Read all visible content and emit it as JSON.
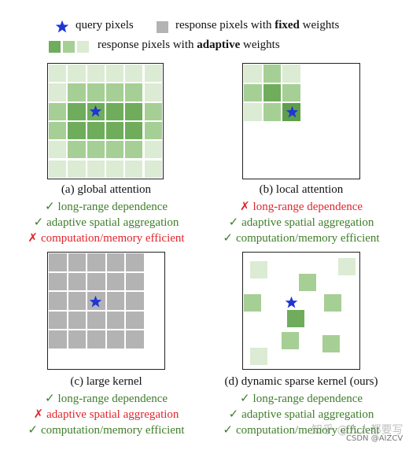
{
  "legend": {
    "query_label": "query pixels",
    "fixed_prefix": "response pixels with",
    "fixed_bold": "fixed",
    "fixed_suffix": "weights",
    "adaptive_prefix": "response pixels with",
    "adaptive_bold": "adaptive",
    "adaptive_suffix": "weights"
  },
  "colors": {
    "query_star": "#1f35d6",
    "fixed_gray": "#b3b3b3",
    "green_dark": "#6fad5c",
    "green_mid": "#a6cf95",
    "green_light": "#dcebd3",
    "good_text": "#3f7d2a",
    "bad_text": "#e0252b"
  },
  "marks": {
    "check": "✓",
    "cross": "✗"
  },
  "panels": [
    {
      "caption": "(a) global attention",
      "points": [
        {
          "ok": true,
          "text": "long-range dependence"
        },
        {
          "ok": true,
          "text": "adaptive spatial aggregation"
        },
        {
          "ok": false,
          "text": "computation/memory efficient"
        }
      ]
    },
    {
      "caption": "(b) local attention",
      "points": [
        {
          "ok": false,
          "text": "long-range dependence"
        },
        {
          "ok": true,
          "text": "adaptive spatial aggregation"
        },
        {
          "ok": true,
          "text": "computation/memory efficient"
        }
      ]
    },
    {
      "caption": "(c) large kernel",
      "points": [
        {
          "ok": true,
          "text": "long-range dependence"
        },
        {
          "ok": false,
          "text": "adaptive spatial aggregation"
        },
        {
          "ok": true,
          "text": "computation/memory efficient"
        }
      ]
    },
    {
      "caption": "(d) dynamic sparse kernel (ours)",
      "points": [
        {
          "ok": true,
          "text": "long-range dependence"
        },
        {
          "ok": true,
          "text": "adaptive spatial aggregation"
        },
        {
          "ok": true,
          "text": "computation/memory efficient"
        }
      ]
    }
  ],
  "watermark": {
    "line1": "知乎 @人人都要写",
    "line2": "CSDN @AIZCV"
  }
}
